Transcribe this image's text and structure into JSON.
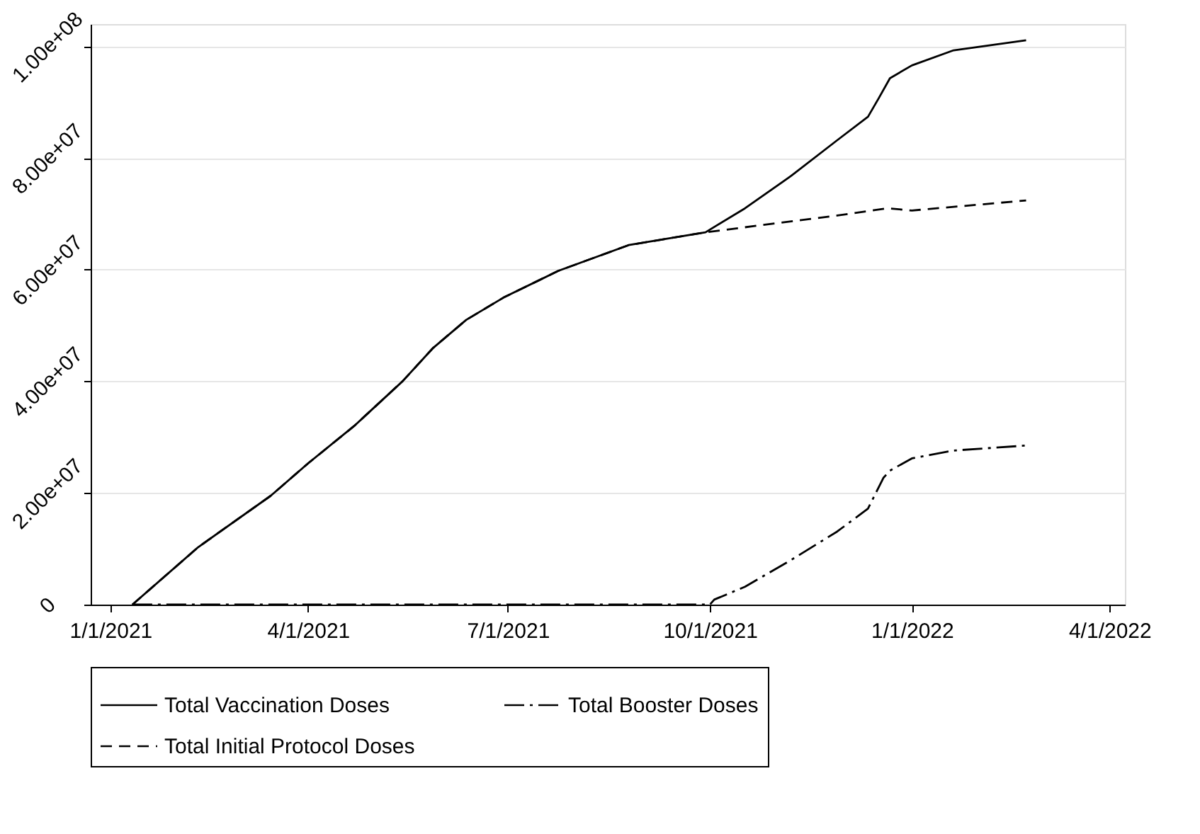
{
  "chart_data": {
    "type": "line",
    "xlim": [
      "2020-12-23",
      "2022-04-08"
    ],
    "xticks": [
      {
        "value": "2021-01-01",
        "label": "1/1/2021"
      },
      {
        "value": "2021-04-01",
        "label": "4/1/2021"
      },
      {
        "value": "2021-07-01",
        "label": "7/1/2021"
      },
      {
        "value": "2021-10-01",
        "label": "10/1/2021"
      },
      {
        "value": "2022-01-01",
        "label": "1/1/2022"
      },
      {
        "value": "2022-04-01",
        "label": "4/1/2022"
      }
    ],
    "ylim": [
      0,
      104000000
    ],
    "yticks": [
      0,
      {
        "value": 20000000,
        "label": "2.00e+07"
      },
      {
        "value": 40000000,
        "label": "4.00e+07"
      },
      {
        "value": 60000000,
        "label": "6.00e+07"
      },
      {
        "value": 80000000,
        "label": "8.00e+07"
      },
      {
        "value": 100000000,
        "label": "1.00e+08"
      }
    ],
    "grid": "y",
    "legend": "bottom",
    "marker": "none",
    "series": [
      {
        "name": "Total Vaccination Doses",
        "color": "#000000",
        "line_style": "solid",
        "x": [
          "2021-01-11",
          "2021-02-10",
          "2021-03-15",
          "2021-04-01",
          "2021-04-22",
          "2021-05-14",
          "2021-05-28",
          "2021-06-12",
          "2021-06-29",
          "2021-07-24",
          "2021-08-25",
          "2021-09-29",
          "2021-10-17",
          "2021-11-07",
          "2021-11-28",
          "2021-12-12",
          "2021-12-17",
          "2021-12-22",
          "2022-01-01",
          "2022-01-20",
          "2022-02-22"
        ],
        "values": [
          0,
          10300000,
          19500000,
          25300000,
          32000000,
          40000000,
          46000000,
          51000000,
          55000000,
          59800000,
          64400000,
          66700000,
          71000000,
          76800000,
          83200000,
          87400000,
          90800000,
          94300000,
          96600000,
          99300000,
          101100000
        ]
      },
      {
        "name": "Total Booster Doses",
        "color": "#000000",
        "line_style": "dashdot",
        "x": [
          "2021-01-11",
          "2021-10-01",
          "2021-10-03",
          "2021-10-17",
          "2021-11-07",
          "2021-11-28",
          "2021-12-12",
          "2021-12-19",
          "2021-12-22",
          "2022-01-01",
          "2022-01-20",
          "2022-02-22"
        ],
        "values": [
          0,
          0,
          900000,
          3200000,
          8000000,
          13100000,
          17200000,
          22700000,
          24000000,
          26200000,
          27600000,
          28500000
        ]
      },
      {
        "name": "Total Initial Protocol Doses",
        "color": "#000000",
        "line_style": "dashed",
        "x": [
          "2021-01-11",
          "2021-02-10",
          "2021-03-15",
          "2021-04-01",
          "2021-04-22",
          "2021-05-14",
          "2021-05-28",
          "2021-06-12",
          "2021-06-29",
          "2021-07-24",
          "2021-08-25",
          "2021-09-29",
          "2021-11-28",
          "2021-12-21",
          "2022-01-01",
          "2022-02-22"
        ],
        "values": [
          0,
          10300000,
          19500000,
          25300000,
          32000000,
          40000000,
          46000000,
          51000000,
          55000000,
          59800000,
          64400000,
          66700000,
          69700000,
          71000000,
          70600000,
          72400000
        ]
      }
    ]
  }
}
